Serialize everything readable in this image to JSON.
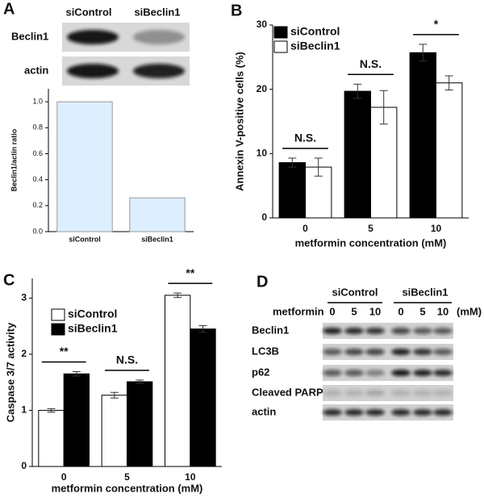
{
  "panel_labels": [
    "A",
    "B",
    "C",
    "D"
  ],
  "blot_a": {
    "columns": [
      "siControl",
      "siBeclin1"
    ],
    "rows": [
      "Beclin1",
      "actin"
    ]
  },
  "blot_d": {
    "groups": [
      "siControl",
      "siBeclin1"
    ],
    "treatment": "metformin",
    "lanes": [
      "0",
      "5",
      "10",
      "0",
      "5",
      "10"
    ],
    "unit": "(mM)",
    "rows": [
      "Beclin1",
      "LC3B",
      "p62",
      "Cleaved PARP",
      "actin"
    ]
  },
  "chart_data": [
    {
      "type": "bar",
      "y_label": "Beclin1/actin ratio",
      "categories": [
        "siControl",
        "siBeclin1"
      ],
      "values": [
        1.0,
        0.26
      ],
      "color": "#ddeeff",
      "ylim": [
        0,
        1.1
      ],
      "yticks": [
        {
          "value": 0,
          "label": "0.0"
        },
        0.2,
        0.4,
        0.6,
        0.8,
        {
          "value": 1,
          "label": "1.0"
        }
      ]
    },
    {
      "type": "grouped_bar",
      "y_label": "Annexin V-positive cells (%)",
      "x_label": "metformin concentration (mM)",
      "categories": [
        "0",
        "5",
        "10"
      ],
      "series": [
        {
          "name": "siControl",
          "color": "#000000",
          "values": [
            8.6,
            19.7,
            25.7
          ],
          "errors": [
            0.7,
            1.1,
            1.3
          ]
        },
        {
          "name": "siBeclin1",
          "color": "#ffffff",
          "values": [
            7.9,
            17.2,
            21.0
          ],
          "errors": [
            1.4,
            2.6,
            1.1
          ]
        }
      ],
      "annotations": [
        "N.S.",
        "N.S.",
        "*"
      ],
      "ylim": [
        0,
        30
      ],
      "yticks": [
        0,
        10,
        20,
        30
      ],
      "legend": "top-left"
    },
    {
      "type": "grouped_bar",
      "y_label": "Caspase 3/7 activity",
      "x_label": "metformin concentration (mM)",
      "categories": [
        "0",
        "5",
        "10"
      ],
      "series": [
        {
          "name": "siControl",
          "color": "#ffffff",
          "values": [
            1.0,
            1.27,
            3.05
          ],
          "errors": [
            0.03,
            0.05,
            0.04
          ]
        },
        {
          "name": "siBeclin1",
          "color": "#000000",
          "values": [
            1.65,
            1.51,
            2.45
          ],
          "errors": [
            0.04,
            0.03,
            0.06
          ]
        }
      ],
      "annotations": [
        "**",
        "N.S.",
        "**"
      ],
      "ylim": [
        0,
        3.35
      ],
      "yticks": [
        0,
        1,
        2,
        3
      ],
      "legend": "top-left"
    }
  ]
}
